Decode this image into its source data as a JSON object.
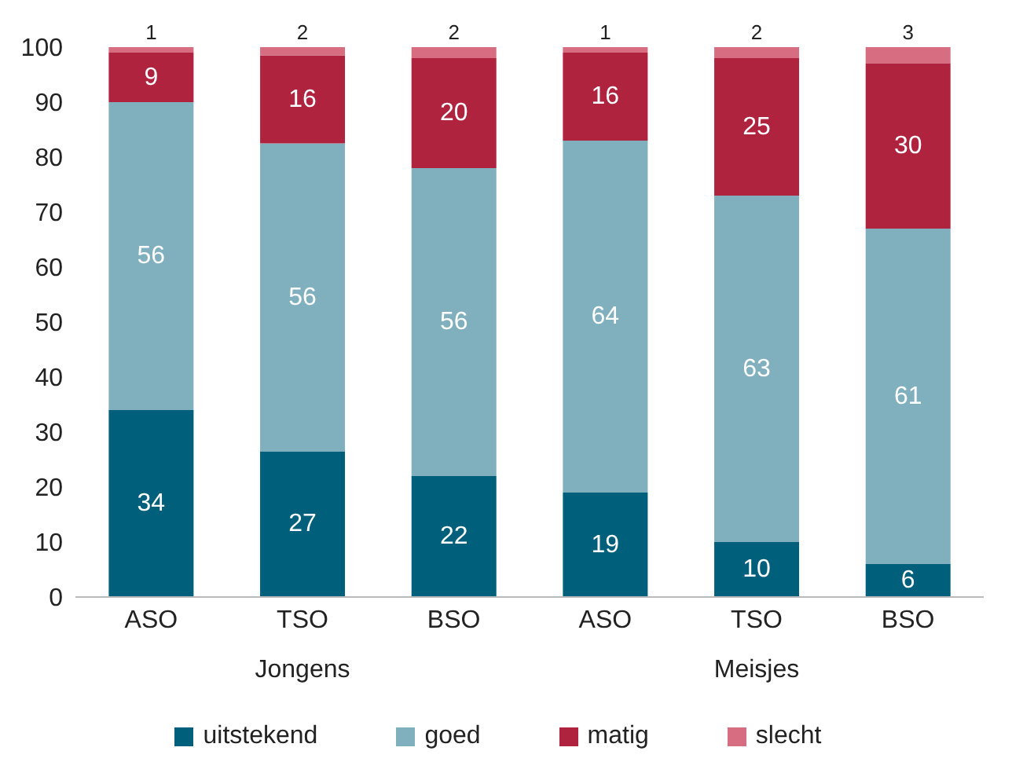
{
  "chart_data": {
    "type": "bar",
    "stacked": true,
    "categories": [
      "ASO",
      "TSO",
      "BSO",
      "ASO",
      "TSO",
      "BSO"
    ],
    "series": [
      {
        "name": "uitstekend",
        "color": "#005f7a",
        "values": [
          34,
          26.5,
          22,
          19,
          10,
          6
        ],
        "value_labels": [
          "34",
          "27",
          "22",
          "19",
          "10",
          "6"
        ]
      },
      {
        "name": "goed",
        "color": "#80afbe",
        "values": [
          56,
          56,
          56,
          64,
          63,
          61
        ],
        "value_labels": [
          "56",
          "56",
          "56",
          "64",
          "63",
          "61"
        ]
      },
      {
        "name": "matig",
        "color": "#b0233f",
        "values": [
          9,
          16,
          20,
          16,
          25,
          30
        ],
        "value_labels": [
          "9",
          "16",
          "20",
          "16",
          "25",
          "30"
        ]
      },
      {
        "name": "slecht",
        "color": "#d66d80",
        "values": [
          1,
          1.5,
          2,
          1,
          2,
          3
        ],
        "value_labels": [
          "1",
          "2",
          "2",
          "1",
          "2",
          "3"
        ]
      }
    ],
    "ylim": [
      0,
      100
    ],
    "yticks": [
      0,
      10,
      20,
      30,
      40,
      50,
      60,
      70,
      80,
      90,
      100
    ],
    "grid": false,
    "legend": "bottom",
    "annotations": [
      "Jongens",
      "Meisjes"
    ]
  }
}
